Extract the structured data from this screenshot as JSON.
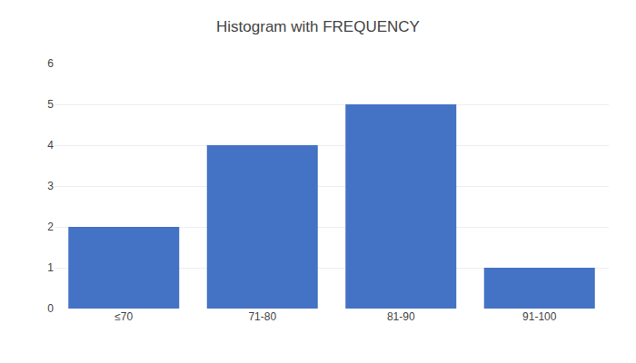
{
  "chart_data": {
    "type": "bar",
    "title": "Histogram with FREQUENCY",
    "categories": [
      "≤70",
      "71-80",
      "81-90",
      "91-100"
    ],
    "values": [
      2,
      4,
      5,
      1
    ],
    "color": "#4472C4",
    "ylim": [
      0,
      6
    ],
    "yticks": [
      0,
      1,
      2,
      3,
      4,
      5,
      6
    ],
    "grid": true
  }
}
